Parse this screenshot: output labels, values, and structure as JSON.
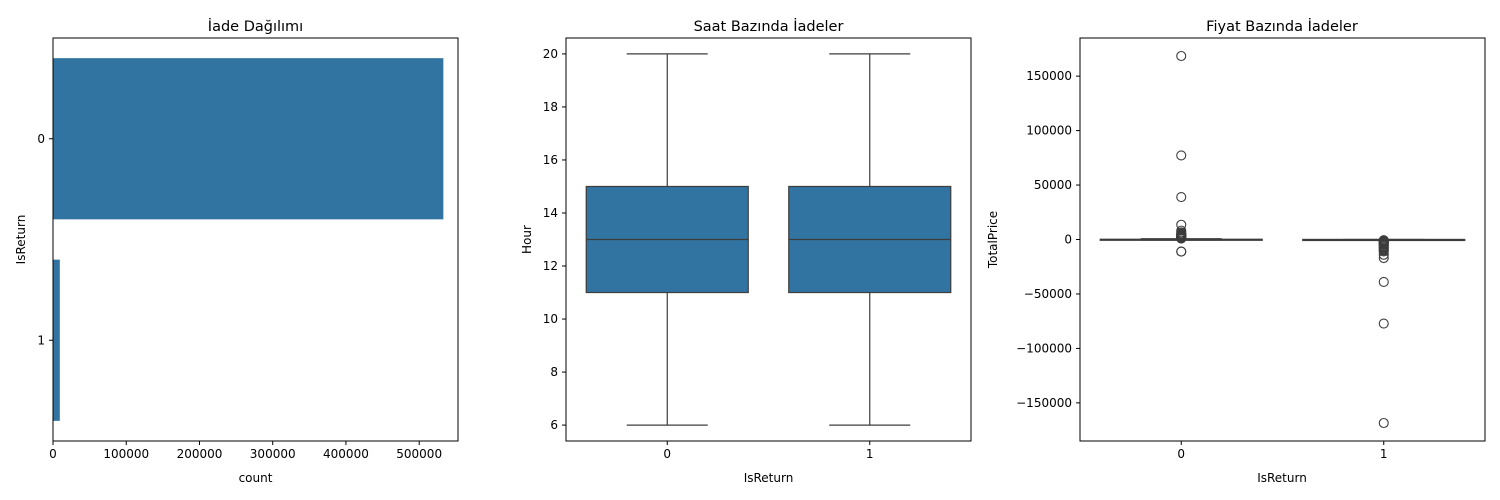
{
  "chart_data": [
    {
      "type": "bar",
      "orientation": "horizontal",
      "title": "İade Dağılımı",
      "xlabel": "count",
      "ylabel": "IsReturn",
      "categories": [
        "0",
        "1"
      ],
      "values": [
        533000,
        9300
      ],
      "xlim": [
        0,
        553000
      ],
      "xticks": [
        0,
        100000,
        200000,
        300000,
        400000,
        500000
      ],
      "color": "#3274a1",
      "grid": false
    },
    {
      "type": "box",
      "title": "Saat Bazında İadeler",
      "xlabel": "IsReturn",
      "ylabel": "Hour",
      "categories": [
        "0",
        "1"
      ],
      "ylim": [
        5.4,
        20.6
      ],
      "yticks": [
        6,
        8,
        10,
        12,
        14,
        16,
        18,
        20
      ],
      "series": [
        {
          "category": "0",
          "whislo": 6,
          "q1": 11,
          "median": 13,
          "q3": 15,
          "whishi": 20,
          "fliers": []
        },
        {
          "category": "1",
          "whislo": 6,
          "q1": 11,
          "median": 13,
          "q3": 15,
          "whishi": 20,
          "fliers": []
        }
      ],
      "color": "#3274a1",
      "grid": false
    },
    {
      "type": "box",
      "title": "Fiyat Bazında İadeler",
      "xlabel": "IsReturn",
      "ylabel": "TotalPrice",
      "categories": [
        "0",
        "1"
      ],
      "ylim": [
        -185000,
        185000
      ],
      "yticks": [
        -150000,
        -100000,
        -50000,
        0,
        50000,
        100000,
        150000
      ],
      "series": [
        {
          "category": "0",
          "whislo": -500,
          "q1": 0,
          "median": 0,
          "q3": 200,
          "whishi": 700,
          "fliers": [
            168470,
            77183,
            38970,
            13541,
            8142,
            6539,
            5500,
            4992,
            4500,
            3949,
            3500,
            3100,
            2700,
            2300,
            2000,
            1700,
            1400,
            1100,
            900,
            -11062,
            -11062
          ]
        },
        {
          "category": "1",
          "whislo": -300,
          "q1": -50,
          "median": -20,
          "q3": 0,
          "whishi": 0,
          "fliers": [
            -600,
            -900,
            -1200,
            -1600,
            -2000,
            -2500,
            -3000,
            -3500,
            -4000,
            -4500,
            -5000,
            -6000,
            -7000,
            -8000,
            -9000,
            -10000,
            -11000,
            -14000,
            -17000,
            -38970,
            -77183,
            -168470
          ]
        }
      ],
      "color": "#3274a1",
      "grid": false
    }
  ]
}
